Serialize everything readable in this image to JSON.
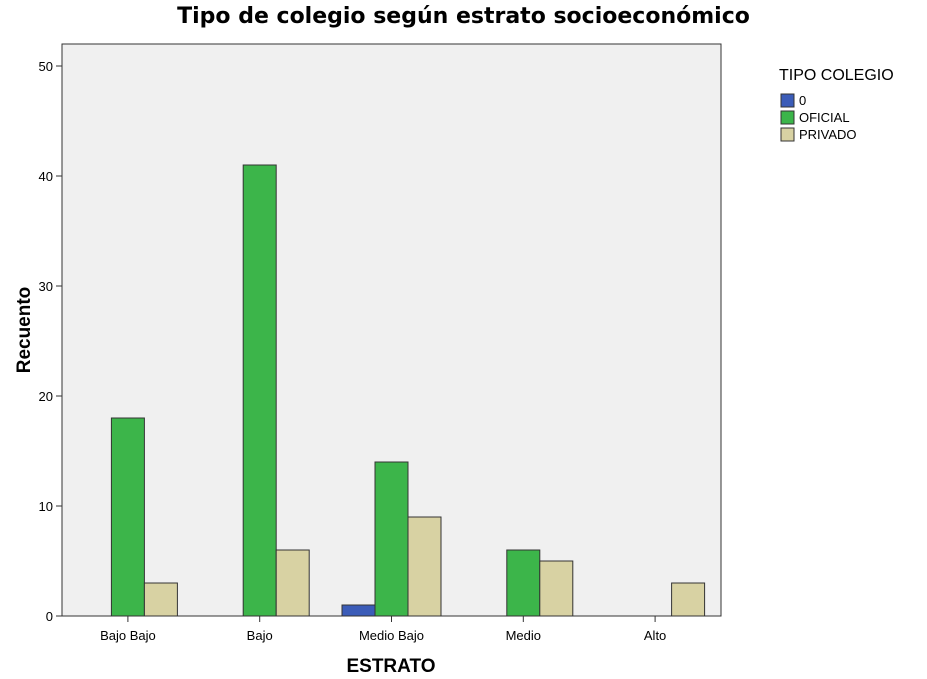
{
  "chart_data": {
    "type": "bar",
    "title": "Tipo de colegio según estrato socioeconómico",
    "xlabel": "ESTRATO",
    "ylabel": "Recuento",
    "ylim": [
      0,
      52
    ],
    "yticks": [
      0,
      10,
      20,
      30,
      40,
      50
    ],
    "categories": [
      "Bajo Bajo",
      "Bajo",
      "Medio Bajo",
      "Medio",
      "Alto"
    ],
    "legend_title": "TIPO COLEGIO",
    "legend_position": "top-right, outside plot",
    "grid": false,
    "plot_background": "#f0f0f0",
    "series": [
      {
        "name": "0",
        "color": "#3b5cb8",
        "values": [
          0,
          0,
          1,
          0,
          0
        ]
      },
      {
        "name": "OFICIAL",
        "color": "#3cb54a",
        "values": [
          18,
          41,
          14,
          6,
          0
        ]
      },
      {
        "name": "PRIVADO",
        "color": "#d8d2a3",
        "values": [
          3,
          6,
          9,
          5,
          3
        ]
      }
    ]
  }
}
